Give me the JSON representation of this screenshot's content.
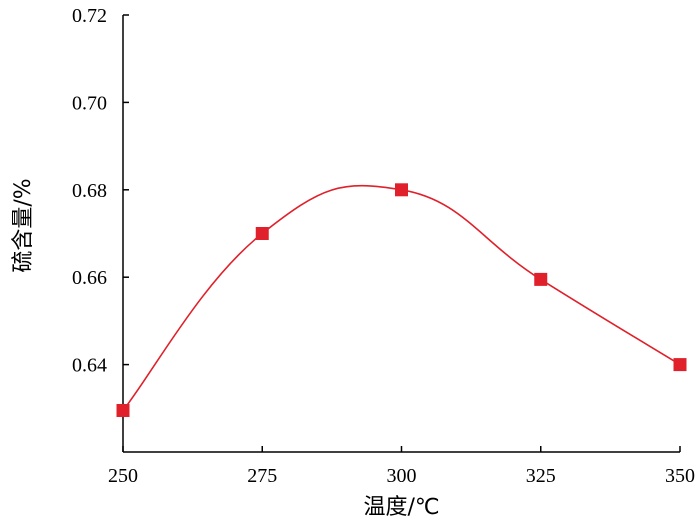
{
  "chart_data": {
    "type": "scatter",
    "title": "",
    "xlabel": "温度/℃",
    "ylabel": "硫含量/%",
    "x": [
      250,
      275,
      300,
      325,
      350
    ],
    "series": [
      {
        "values": [
          0.6295,
          0.67,
          0.68,
          0.6595,
          0.64
        ],
        "color": "#e0202a",
        "marker": "square",
        "line": "smooth"
      }
    ],
    "xlim": [
      250,
      350
    ],
    "ylim": [
      0.62,
      0.72
    ],
    "xticks": [
      "250",
      "275",
      "300",
      "325",
      "350"
    ],
    "yticks": [
      "0.64",
      "0.66",
      "0.68",
      "0.70",
      "0.72"
    ],
    "grid": false,
    "legend": "none"
  }
}
